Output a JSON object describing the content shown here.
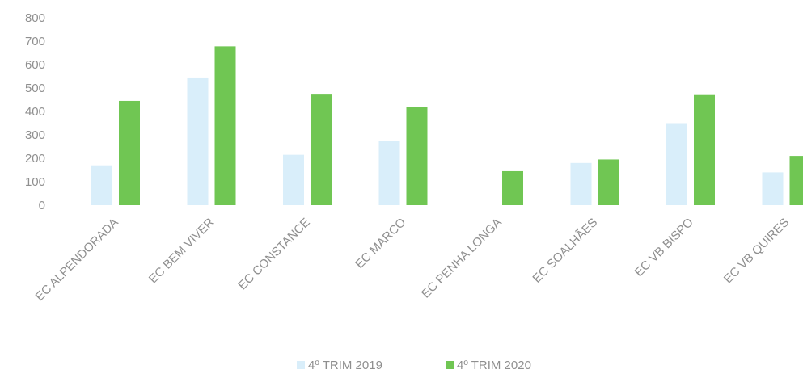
{
  "chart_data": {
    "type": "bar",
    "categories": [
      "EC ALPENDORADA",
      "EC BEM VIVER",
      "EC CONSTANCE",
      "EC MARCO",
      "EC PENHA LONGA",
      "EC SOALHÃES",
      "EC VB BISPO",
      "EC VB QUIRES"
    ],
    "series": [
      {
        "name": "4º TRIM 2019",
        "color": "#d9eefa",
        "values": [
          170,
          545,
          215,
          275,
          0,
          180,
          350,
          140
        ]
      },
      {
        "name": "4º TRIM 2020",
        "color": "#70c653",
        "values": [
          445,
          678,
          472,
          418,
          145,
          195,
          470,
          210
        ]
      }
    ],
    "yticks": [
      0,
      100,
      200,
      300,
      400,
      500,
      600,
      700,
      800
    ],
    "ylim": [
      0,
      800
    ],
    "grid": false,
    "legend": "bottom-center",
    "title": "",
    "xlabel": "",
    "ylabel": ""
  }
}
